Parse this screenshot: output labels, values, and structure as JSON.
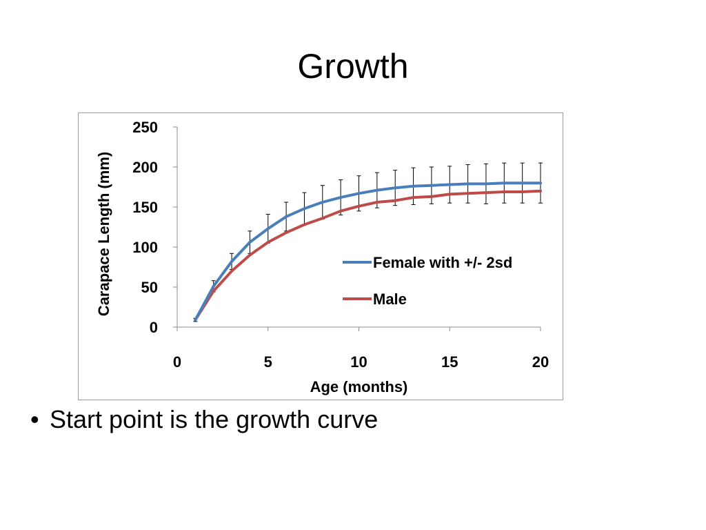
{
  "slide": {
    "title": "Growth",
    "bullet_symbol": "•",
    "bullet_text": "Start point is the growth curve"
  },
  "chart_data": {
    "type": "line",
    "title": "",
    "xlabel": "Age (months)",
    "ylabel": "Carapace Length (mm)",
    "xlim": [
      0,
      20
    ],
    "ylim": [
      0,
      250
    ],
    "xticks": [
      0,
      5,
      10,
      15,
      20
    ],
    "yticks": [
      0,
      50,
      100,
      150,
      200,
      250
    ],
    "grid": false,
    "legend_position": "right-middle",
    "x": [
      1,
      2,
      3,
      4,
      5,
      6,
      7,
      8,
      9,
      10,
      11,
      12,
      13,
      14,
      15,
      16,
      17,
      18,
      19,
      20
    ],
    "series": [
      {
        "name": "Female with +/- 2sd",
        "color": "#4a7ebb",
        "values": [
          9,
          51,
          82,
          106,
          123,
          138,
          148,
          156,
          162,
          167,
          171,
          174,
          176,
          177,
          178,
          179,
          179,
          180,
          180,
          180
        ],
        "error_2sd": [
          2,
          7,
          10,
          14,
          18,
          18,
          20,
          21,
          22,
          22,
          22,
          22,
          23,
          23,
          23,
          24,
          25,
          25,
          25,
          25
        ]
      },
      {
        "name": "Male",
        "color": "#be4b48",
        "values": [
          9,
          45,
          70,
          90,
          106,
          118,
          128,
          136,
          145,
          151,
          156,
          158,
          162,
          163,
          166,
          167,
          168,
          169,
          169,
          170
        ]
      }
    ]
  }
}
